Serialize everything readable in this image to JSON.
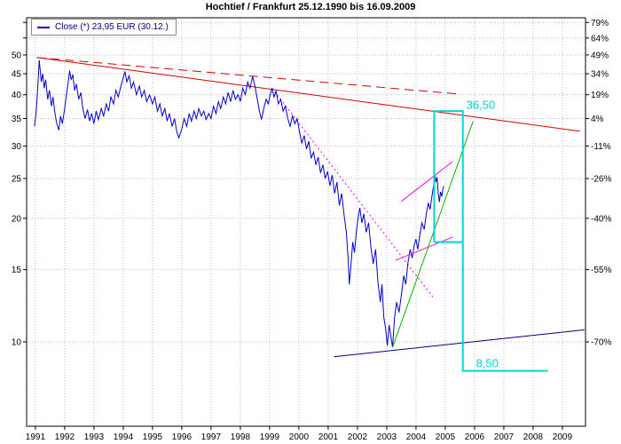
{
  "chart_data": {
    "type": "line",
    "title": "Hochtief / Frankfurt 25.12.1990 bis 16.09.2009",
    "legend": "Close (*) 23,95 EUR (30.12.)",
    "y_scale": "log",
    "x_range": [
      1990.7,
      2009.79
    ],
    "y_range": [
      6.23,
      61.6
    ],
    "grid": true,
    "grid_color": "#bdbdbd",
    "x_ticks": [
      1991,
      1992,
      1993,
      1994,
      1995,
      1996,
      1997,
      1998,
      1999,
      2000,
      2001,
      2002,
      2003,
      2004,
      2005,
      2006,
      2007,
      2008,
      2009
    ],
    "left_ticks": [
      {
        "v": 60,
        "label": ""
      },
      {
        "v": 55,
        "label": ""
      },
      {
        "v": 50,
        "label": "50"
      },
      {
        "v": 45,
        "label": "45"
      },
      {
        "v": 40,
        "label": "40"
      },
      {
        "v": 35,
        "label": "35"
      },
      {
        "v": 30,
        "label": "30"
      },
      {
        "v": 25,
        "label": "25"
      },
      {
        "v": 20,
        "label": "20"
      },
      {
        "v": 15,
        "label": "15"
      },
      {
        "v": 10,
        "label": "10"
      }
    ],
    "right_ticks": [
      {
        "v": 60,
        "label": "79%"
      },
      {
        "v": 55,
        "label": "64%"
      },
      {
        "v": 50,
        "label": "49%"
      },
      {
        "v": 45,
        "label": "34%"
      },
      {
        "v": 40,
        "label": "19%"
      },
      {
        "v": 35,
        "label": "4%"
      },
      {
        "v": 30,
        "label": "-11%"
      },
      {
        "v": 25,
        "label": "-26%"
      },
      {
        "v": 20,
        "label": "-40%"
      },
      {
        "v": 15,
        "label": "-55%"
      },
      {
        "v": 10,
        "label": "-70%"
      }
    ],
    "series": {
      "name": "Close",
      "color": "#0000cd",
      "points": [
        [
          1990.97,
          33.5
        ],
        [
          1991.02,
          36
        ],
        [
          1991.06,
          39.5
        ],
        [
          1991.1,
          44
        ],
        [
          1991.13,
          48.6
        ],
        [
          1991.17,
          45.5
        ],
        [
          1991.2,
          43
        ],
        [
          1991.25,
          45
        ],
        [
          1991.3,
          41.5
        ],
        [
          1991.35,
          43.5
        ],
        [
          1991.42,
          39
        ],
        [
          1991.48,
          41
        ],
        [
          1991.55,
          37.5
        ],
        [
          1991.6,
          39.5
        ],
        [
          1991.67,
          36
        ],
        [
          1991.73,
          34
        ],
        [
          1991.8,
          32.8
        ],
        [
          1991.86,
          35.5
        ],
        [
          1991.92,
          34
        ],
        [
          1992,
          37
        ],
        [
          1992.06,
          40
        ],
        [
          1992.12,
          43
        ],
        [
          1992.17,
          45.8
        ],
        [
          1992.22,
          43.5
        ],
        [
          1992.28,
          44.8
        ],
        [
          1992.34,
          41
        ],
        [
          1992.4,
          42.5
        ],
        [
          1992.48,
          39
        ],
        [
          1992.55,
          40.5
        ],
        [
          1992.62,
          37
        ],
        [
          1992.7,
          35
        ],
        [
          1992.78,
          36.8
        ],
        [
          1992.85,
          34.5
        ],
        [
          1992.92,
          36
        ],
        [
          1993,
          34
        ],
        [
          1993.08,
          36.5
        ],
        [
          1993.15,
          34.8
        ],
        [
          1993.25,
          37
        ],
        [
          1993.33,
          35.5
        ],
        [
          1993.42,
          38
        ],
        [
          1993.5,
          36.5
        ],
        [
          1993.58,
          39.5
        ],
        [
          1993.67,
          38
        ],
        [
          1993.75,
          41
        ],
        [
          1993.83,
          39.5
        ],
        [
          1993.92,
          42
        ],
        [
          1994,
          44
        ],
        [
          1994.06,
          45.6
        ],
        [
          1994.12,
          43
        ],
        [
          1994.2,
          44.5
        ],
        [
          1994.28,
          41.5
        ],
        [
          1994.35,
          43
        ],
        [
          1994.45,
          40
        ],
        [
          1994.55,
          42
        ],
        [
          1994.63,
          39.5
        ],
        [
          1994.72,
          41
        ],
        [
          1994.8,
          38.5
        ],
        [
          1994.9,
          40
        ],
        [
          1995,
          38
        ],
        [
          1995.08,
          39.5
        ],
        [
          1995.17,
          36.5
        ],
        [
          1995.25,
          38
        ],
        [
          1995.33,
          35.5
        ],
        [
          1995.42,
          37
        ],
        [
          1995.5,
          34.5
        ],
        [
          1995.58,
          36
        ],
        [
          1995.67,
          33.5
        ],
        [
          1995.75,
          35
        ],
        [
          1995.83,
          32.5
        ],
        [
          1995.9,
          31.4
        ],
        [
          1996,
          33
        ],
        [
          1996.08,
          35
        ],
        [
          1996.17,
          33.5
        ],
        [
          1996.25,
          36
        ],
        [
          1996.33,
          34.5
        ],
        [
          1996.42,
          36.5
        ],
        [
          1996.5,
          35
        ],
        [
          1996.58,
          37
        ],
        [
          1996.67,
          35.5
        ],
        [
          1996.75,
          36.5
        ],
        [
          1996.83,
          34.8
        ],
        [
          1996.92,
          36
        ],
        [
          1997,
          35
        ],
        [
          1997.08,
          37.5
        ],
        [
          1997.17,
          36
        ],
        [
          1997.25,
          38.5
        ],
        [
          1997.33,
          37
        ],
        [
          1997.42,
          39.5
        ],
        [
          1997.5,
          38
        ],
        [
          1997.58,
          40.5
        ],
        [
          1997.67,
          38.5
        ],
        [
          1997.75,
          41
        ],
        [
          1997.83,
          39
        ],
        [
          1997.92,
          40
        ],
        [
          1998,
          38.5
        ],
        [
          1998.08,
          41.5
        ],
        [
          1998.17,
          40
        ],
        [
          1998.25,
          43
        ],
        [
          1998.33,
          41.5
        ],
        [
          1998.42,
          44.3
        ],
        [
          1998.5,
          42
        ],
        [
          1998.58,
          39
        ],
        [
          1998.65,
          36.5
        ],
        [
          1998.72,
          34.8
        ],
        [
          1998.8,
          37
        ],
        [
          1998.88,
          39
        ],
        [
          1998.95,
          38
        ],
        [
          1999.02,
          40
        ],
        [
          1999.08,
          41.5
        ],
        [
          1999.15,
          39.5
        ],
        [
          1999.22,
          40.8
        ],
        [
          1999.3,
          38
        ],
        [
          1999.38,
          39
        ],
        [
          1999.46,
          36.5
        ],
        [
          1999.54,
          37.5
        ],
        [
          1999.62,
          35
        ],
        [
          1999.7,
          33.5
        ],
        [
          1999.78,
          35.5
        ],
        [
          1999.86,
          34
        ],
        [
          1999.94,
          35
        ],
        [
          2000.02,
          32.5
        ],
        [
          2000.1,
          30.5
        ],
        [
          2000.18,
          31.8
        ],
        [
          2000.26,
          29.5
        ],
        [
          2000.34,
          30.8
        ],
        [
          2000.42,
          28
        ],
        [
          2000.5,
          29
        ],
        [
          2000.58,
          27
        ],
        [
          2000.66,
          28.2
        ],
        [
          2000.74,
          25.8
        ],
        [
          2000.82,
          27
        ],
        [
          2000.9,
          25
        ],
        [
          2000.98,
          26
        ],
        [
          2001.06,
          24
        ],
        [
          2001.14,
          25.5
        ],
        [
          2001.22,
          23
        ],
        [
          2001.3,
          24.5
        ],
        [
          2001.38,
          21.5
        ],
        [
          2001.46,
          23
        ],
        [
          2001.54,
          20.5
        ],
        [
          2001.62,
          18.5
        ],
        [
          2001.68,
          16
        ],
        [
          2001.72,
          13.8
        ],
        [
          2001.78,
          15.5
        ],
        [
          2001.84,
          17.5
        ],
        [
          2001.9,
          16.5
        ],
        [
          2001.96,
          18.5
        ],
        [
          2002.02,
          20
        ],
        [
          2002.08,
          21.2
        ],
        [
          2002.15,
          19.5
        ],
        [
          2002.22,
          20.5
        ],
        [
          2002.3,
          18.5
        ],
        [
          2002.38,
          19.5
        ],
        [
          2002.46,
          17
        ],
        [
          2002.54,
          15.5
        ],
        [
          2002.62,
          16.8
        ],
        [
          2002.7,
          14
        ],
        [
          2002.78,
          12.5
        ],
        [
          2002.84,
          13.8
        ],
        [
          2002.9,
          11.5
        ],
        [
          2002.96,
          10.8
        ],
        [
          2003.02,
          9.8
        ],
        [
          2003.08,
          11
        ],
        [
          2003.15,
          10.2
        ],
        [
          2003.2,
          9.7
        ],
        [
          2003.27,
          11.5
        ],
        [
          2003.34,
          12.5
        ],
        [
          2003.42,
          11.8
        ],
        [
          2003.5,
          13
        ],
        [
          2003.58,
          14.5
        ],
        [
          2003.65,
          13.8
        ],
        [
          2003.72,
          15.5
        ],
        [
          2003.8,
          16.8
        ],
        [
          2003.87,
          16
        ],
        [
          2003.94,
          17.2
        ],
        [
          2004,
          17.8
        ],
        [
          2004.06,
          16.8
        ],
        [
          2004.12,
          18
        ],
        [
          2004.2,
          19.5
        ],
        [
          2004.28,
          18.8
        ],
        [
          2004.35,
          20.5
        ],
        [
          2004.42,
          21.8
        ],
        [
          2004.48,
          21
        ],
        [
          2004.54,
          22.5
        ],
        [
          2004.6,
          24
        ],
        [
          2004.64,
          25.6
        ],
        [
          2004.68,
          24.5
        ],
        [
          2004.72,
          25.2
        ],
        [
          2004.76,
          23
        ],
        [
          2004.8,
          21.9
        ],
        [
          2004.84,
          23.2
        ],
        [
          2004.88,
          22.6
        ],
        [
          2004.92,
          23.6
        ],
        [
          2004.95,
          23.95
        ]
      ]
    },
    "overlays": [
      {
        "name": "resistance-line-red-dashed",
        "color": "#d40000",
        "width": 1,
        "dash": "10,6",
        "above": false,
        "points": [
          [
            1991.05,
            49.3
          ],
          [
            2005.4,
            40.2
          ]
        ]
      },
      {
        "name": "resistance-line-red-solid",
        "color": "#d40000",
        "width": 1,
        "dash": null,
        "above": false,
        "points": [
          [
            1991.05,
            49.3
          ],
          [
            2009.6,
            32.6
          ]
        ]
      },
      {
        "name": "downtrend-line-magenta-dotted",
        "color": "#ff00ff",
        "width": 1,
        "dash": "2,3",
        "above": false,
        "points": [
          [
            1999.08,
            41.5
          ],
          [
            2004.6,
            12.8
          ]
        ]
      },
      {
        "name": "support-line-navy",
        "color": "#000080",
        "width": 1,
        "dash": null,
        "above": false,
        "points": [
          [
            2001.2,
            9.2
          ],
          [
            2009.75,
            10.7
          ]
        ]
      },
      {
        "name": "channel-lower-magenta",
        "color": "#ff00ff",
        "width": 1,
        "dash": null,
        "above": true,
        "points": [
          [
            2003.3,
            15.8
          ],
          [
            2005.25,
            18.0
          ]
        ]
      },
      {
        "name": "channel-upper-magenta",
        "color": "#ff00ff",
        "width": 1,
        "dash": null,
        "above": true,
        "points": [
          [
            2003.5,
            22.0
          ],
          [
            2005.25,
            27.5
          ]
        ]
      },
      {
        "name": "uptrend-line-green",
        "color": "#00b400",
        "width": 1,
        "dash": null,
        "above": true,
        "points": [
          [
            2003.2,
            9.7
          ],
          [
            2005.95,
            34.5
          ]
        ]
      },
      {
        "name": "target-box-cyan",
        "color": "#00d5d5",
        "width": 2,
        "dash": null,
        "above": true,
        "points": [
          [
            2004.62,
            17.5
          ],
          [
            2004.62,
            36.5
          ],
          [
            2005.6,
            36.5
          ],
          [
            2005.6,
            8.5
          ],
          [
            2008.5,
            8.5
          ]
        ]
      },
      {
        "name": "target-box-mid-cyan",
        "color": "#00d5d5",
        "width": 2,
        "dash": null,
        "above": true,
        "points": [
          [
            2004.62,
            17.5
          ],
          [
            2005.6,
            17.5
          ]
        ]
      }
    ],
    "annotations": [
      {
        "text": "36,50",
        "color": "#00d5d5",
        "t": 2005.72,
        "p": 37.0
      },
      {
        "text": "8,50",
        "color": "#00d5d5",
        "t": 2006.05,
        "p": 8.68
      }
    ]
  }
}
